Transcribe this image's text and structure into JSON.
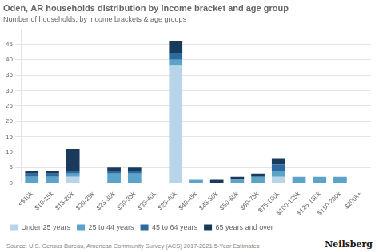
{
  "chart_data": {
    "type": "bar",
    "title": "Oden, AR households distribution by income bracket and age group",
    "subtitle": "Number of households, by income brackets & age groups",
    "annotations": [
      "Source: U.S. Census Bureau, American Community Survey (ACS) 2017-2021 5-Year Estimates",
      "Neilsberg"
    ],
    "categories": [
      "<$10k",
      "$10-15k",
      "$15-20k",
      "$20-25k",
      "$25-30k",
      "$30-35k",
      "$35-40k",
      "$25-40k",
      "$40-45k",
      "$45-50k",
      "$50-60k",
      "$60-75k",
      "$75-100k",
      "$100-125k",
      "$125-150k",
      "$150-200k",
      "$200k+"
    ],
    "series": [
      {
        "name": "Under 25 years",
        "color": "#b8d4e8",
        "values": [
          0,
          0,
          2,
          0,
          0,
          0,
          0,
          38,
          0,
          0,
          0,
          0,
          2,
          0,
          0,
          0,
          0
        ]
      },
      {
        "name": "25 to 44 years",
        "color": "#5ba3c9",
        "values": [
          2,
          2,
          1,
          0,
          3,
          3,
          0,
          2,
          1,
          0,
          1,
          2,
          2,
          2,
          2,
          2,
          0
        ]
      },
      {
        "name": "45 to 64 years",
        "color": "#2d6a9f",
        "values": [
          1,
          1,
          1,
          0,
          1,
          1,
          0,
          2,
          0,
          0,
          0,
          0,
          2,
          0,
          0,
          0,
          0
        ]
      },
      {
        "name": "65 years and over",
        "color": "#1a3a5c",
        "values": [
          1,
          1,
          7,
          0,
          1,
          1,
          0,
          4,
          0,
          1,
          1,
          1,
          2,
          0,
          0,
          0,
          0
        ]
      }
    ],
    "stacked": true,
    "ylim": [
      0,
      50
    ],
    "yticks": [
      0,
      5,
      10,
      15,
      20,
      25,
      30,
      35,
      40,
      45
    ],
    "grid": true,
    "legend": "bottom"
  }
}
